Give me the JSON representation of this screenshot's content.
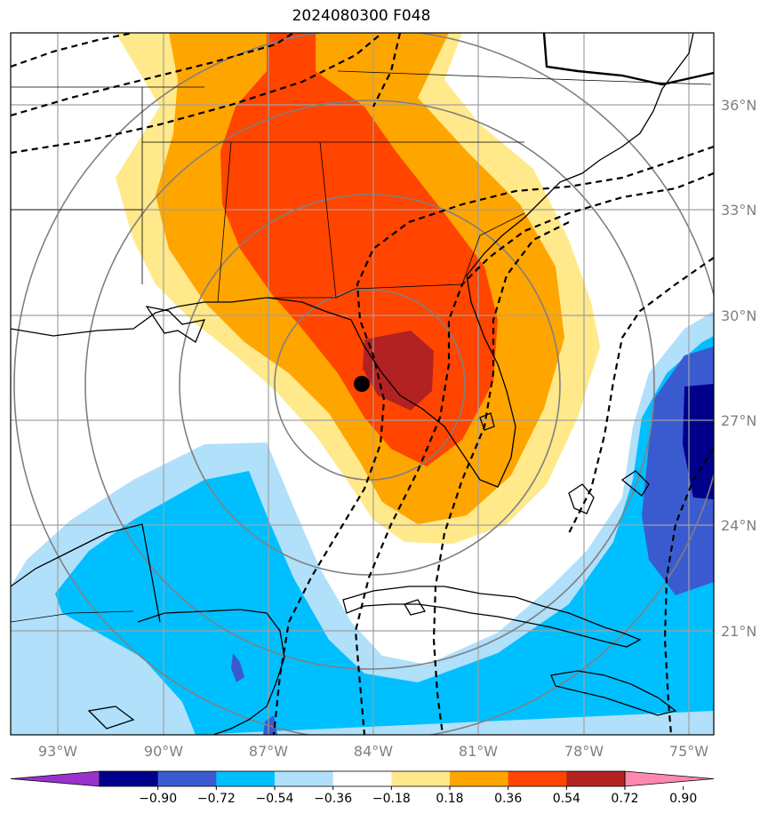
{
  "title": "2024080300 F048",
  "map": {
    "lat_labels": [
      "36°N",
      "33°N",
      "30°N",
      "27°N",
      "24°N",
      "21°N"
    ],
    "lon_labels": [
      "93°W",
      "90°W",
      "87°W",
      "84°W",
      "81°W",
      "78°W",
      "75°W"
    ],
    "center_marker": {
      "lon": -84.4,
      "lat": 28.0,
      "color": "#000000"
    }
  },
  "colorbar": {
    "labels": [
      "−0.90",
      "−0.72",
      "−0.54",
      "−0.36",
      "−0.18",
      "0.18",
      "0.36",
      "0.54",
      "0.72",
      "0.90"
    ],
    "colors": [
      "#9932cc",
      "#00008b",
      "#3a5bd0",
      "#00bfff",
      "#b0e0fa",
      "#ffffff",
      "#ffe98a",
      "#ffa500",
      "#ff4500",
      "#b22222",
      "#ff88b0"
    ]
  }
}
